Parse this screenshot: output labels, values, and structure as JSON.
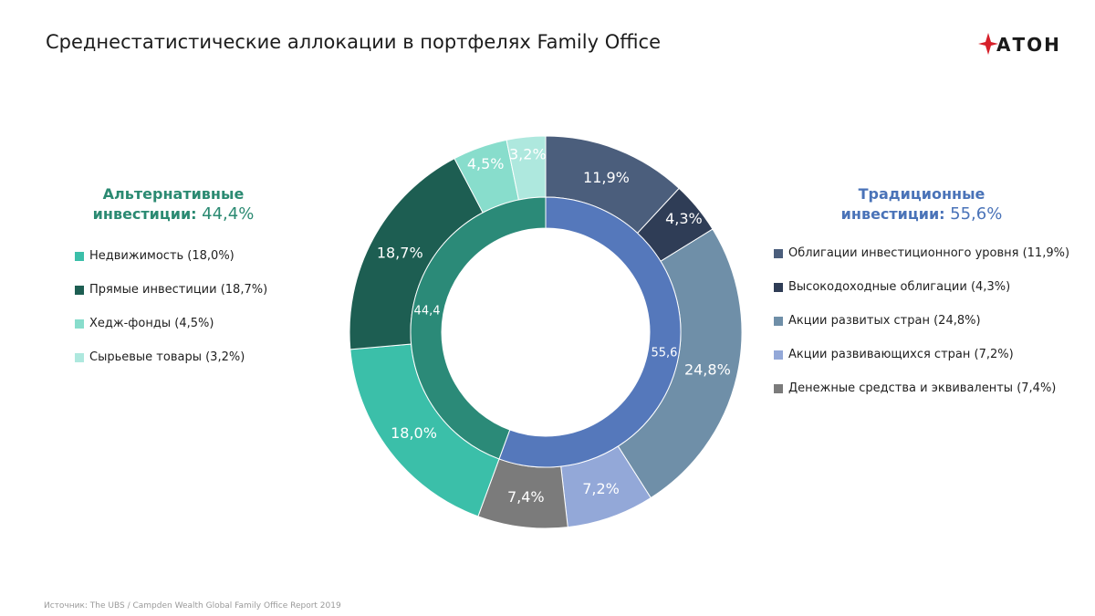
{
  "title": "Среднестатистические аллокации в портфелях Family Office",
  "logo_text": "АТОН",
  "source": "Источник: The UBS / Campden Wealth Global Family Office Report 2019",
  "groups": {
    "alternative": {
      "title": "Альтернативные инвестиции:",
      "pct": "44,4%"
    },
    "traditional": {
      "title": "Традиционные инвестиции:",
      "pct": "55,6%"
    }
  },
  "legend_left": [
    {
      "label": "Недвижимость (18,0%)",
      "color": "#3bbfa9"
    },
    {
      "label": "Прямые инвестиции (18,7%)",
      "color": "#1d5e52"
    },
    {
      "label": "Хедж-фонды (4,5%)",
      "color": "#88ddcc"
    },
    {
      "label": "Сырьевые товары (3,2%)",
      "color": "#aee8de"
    }
  ],
  "legend_right": [
    {
      "label": "Облигации инвестиционного уровня (11,9%)",
      "color": "#4b5e7c"
    },
    {
      "label": "Высокодоходные облигации (4,3%)",
      "color": "#2f3d56"
    },
    {
      "label": "Акции развитых стран (24,8%)",
      "color": "#6f8fa8"
    },
    {
      "label": "Акции развивающихся стран (7,2%)",
      "color": "#93a8d8"
    },
    {
      "label": "Денежные средства и эквиваленты (7,4%)",
      "color": "#7b7b7b"
    }
  ],
  "chart_data": {
    "type": "pie",
    "style": "nested donut",
    "inner": [
      {
        "name": "Традиционные инвестиции",
        "value": 55.6,
        "label": "55,6",
        "color": "#5578bb"
      },
      {
        "name": "Альтернативные инвестиции",
        "value": 44.4,
        "label": "44,4",
        "color": "#2b8a78"
      }
    ],
    "outer": [
      {
        "name": "Облигации инвестиционного уровня",
        "value": 11.9,
        "label": "11,9%",
        "color": "#4b5e7c"
      },
      {
        "name": "Высокодоходные облигации",
        "value": 4.3,
        "label": "4,3%",
        "color": "#2f3d56"
      },
      {
        "name": "Акции развитых стран",
        "value": 24.8,
        "label": "24,8%",
        "color": "#6f8fa8"
      },
      {
        "name": "Акции развивающихся стран",
        "value": 7.2,
        "label": "7,2%",
        "color": "#93a8d8"
      },
      {
        "name": "Денежные средства и эквиваленты",
        "value": 7.4,
        "label": "7,4%",
        "color": "#7b7b7b"
      },
      {
        "name": "Недвижимость",
        "value": 18.0,
        "label": "18,0%",
        "color": "#3bbfa9"
      },
      {
        "name": "Прямые инвестиции",
        "value": 18.7,
        "label": "18,7%",
        "color": "#1d5e52"
      },
      {
        "name": "Хедж-фонды",
        "value": 4.5,
        "label": "4,5%",
        "color": "#88ddcc"
      },
      {
        "name": "Сырьевые товары",
        "value": 3.2,
        "label": "3,2%",
        "color": "#aee8de"
      }
    ]
  }
}
